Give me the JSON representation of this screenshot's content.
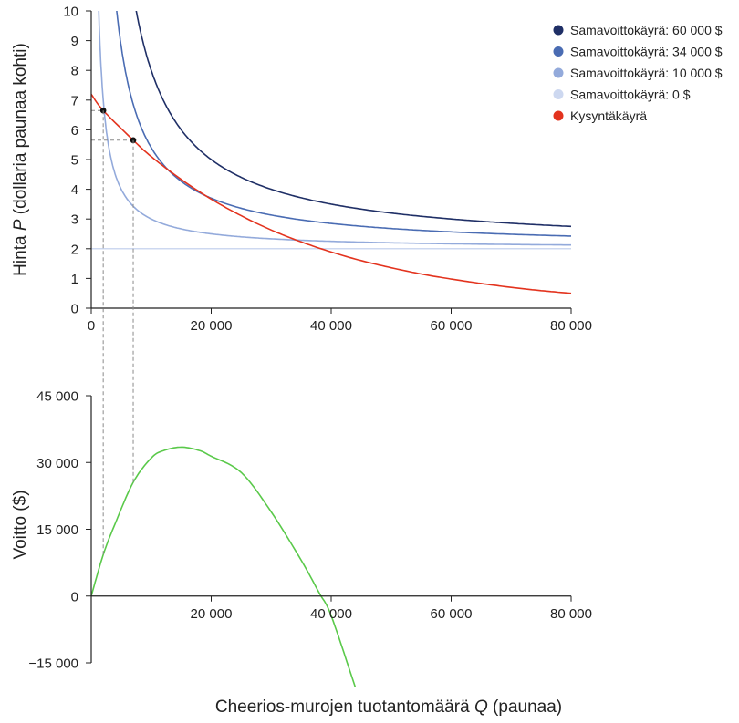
{
  "chart_data": [
    {
      "type": "line",
      "ylabel_parts": [
        "Hinta ",
        "P",
        " (dollaria paunaa kohti)"
      ],
      "xlim": [
        0,
        80000
      ],
      "ylim": [
        0,
        10
      ],
      "x_ticks": [
        0,
        20000,
        40000,
        60000,
        80000
      ],
      "x_tick_labels": [
        "0",
        "20 000",
        "40 000",
        "60 000",
        "80 000"
      ],
      "y_ticks": [
        0,
        1,
        2,
        3,
        4,
        5,
        6,
        7,
        8,
        9,
        10
      ],
      "y_tick_labels": [
        "0",
        "1",
        "2",
        "3",
        "4",
        "5",
        "6",
        "7",
        "8",
        "9",
        "10"
      ],
      "legend_position": "top-right",
      "unit_cost": 2,
      "series": [
        {
          "name": "Samavoittokäyrä: 60 000 $",
          "kind": "isoprofit",
          "profit": 60000,
          "color": "#1f2f66"
        },
        {
          "name": "Samavoittokäyrä: 34 000 $",
          "kind": "isoprofit",
          "profit": 34000,
          "color": "#4a6cb3"
        },
        {
          "name": "Samavoittokäyrä: 10 000 $",
          "kind": "isoprofit",
          "profit": 10000,
          "color": "#93aadb"
        },
        {
          "name": "Samavoittokäyrä: 0 $",
          "kind": "isoprofit",
          "profit": 0,
          "color": "#cdd8f0"
        },
        {
          "name": "Kysyntäkäyrä",
          "kind": "demand",
          "color": "#e3331e",
          "x": [
            0,
            2000,
            7000,
            10000,
            15000,
            20000,
            25000,
            30000,
            35000,
            40000,
            45000,
            50000,
            55000,
            60000,
            65000,
            70000,
            75000,
            80000
          ],
          "y": [
            7.2,
            6.65,
            5.65,
            5.1,
            4.33,
            3.67,
            3.11,
            2.63,
            2.23,
            1.89,
            1.6,
            1.36,
            1.15,
            0.98,
            0.83,
            0.7,
            0.59,
            0.5
          ]
        }
      ],
      "markers": [
        {
          "x": 2000,
          "y": 6.65,
          "color": "#111111"
        },
        {
          "x": 7000,
          "y": 5.65,
          "color": "#111111"
        }
      ],
      "grid": false
    },
    {
      "type": "line",
      "ylabel": "Voitto ($)",
      "xlabel_parts": [
        "Cheerios-murojen tuotantomäärä ",
        "Q",
        " (paunaa)"
      ],
      "xlim": [
        0,
        80000
      ],
      "ylim": [
        -15000,
        45000
      ],
      "x_ticks": [
        0,
        20000,
        40000,
        60000,
        80000
      ],
      "x_tick_labels": [
        "",
        "20 000",
        "40 000",
        "60 000",
        "80 000"
      ],
      "y_ticks": [
        -15000,
        0,
        15000,
        30000,
        45000
      ],
      "y_tick_labels": [
        "−15 000",
        "0",
        "15 000",
        "30 000",
        "45 000"
      ],
      "series": [
        {
          "kind": "profit",
          "color": "#5ac94a",
          "x": [
            0,
            2000,
            4000,
            7000,
            10000,
            12000,
            15000,
            18000,
            20000,
            25000,
            30000,
            35000,
            38000,
            40000,
            44000
          ],
          "y": [
            0,
            9300,
            16300,
            25550,
            31000,
            32640,
            33450,
            32700,
            31400,
            27750,
            18900,
            8050,
            700,
            -4400,
            -20400
          ]
        }
      ],
      "grid": false
    }
  ]
}
